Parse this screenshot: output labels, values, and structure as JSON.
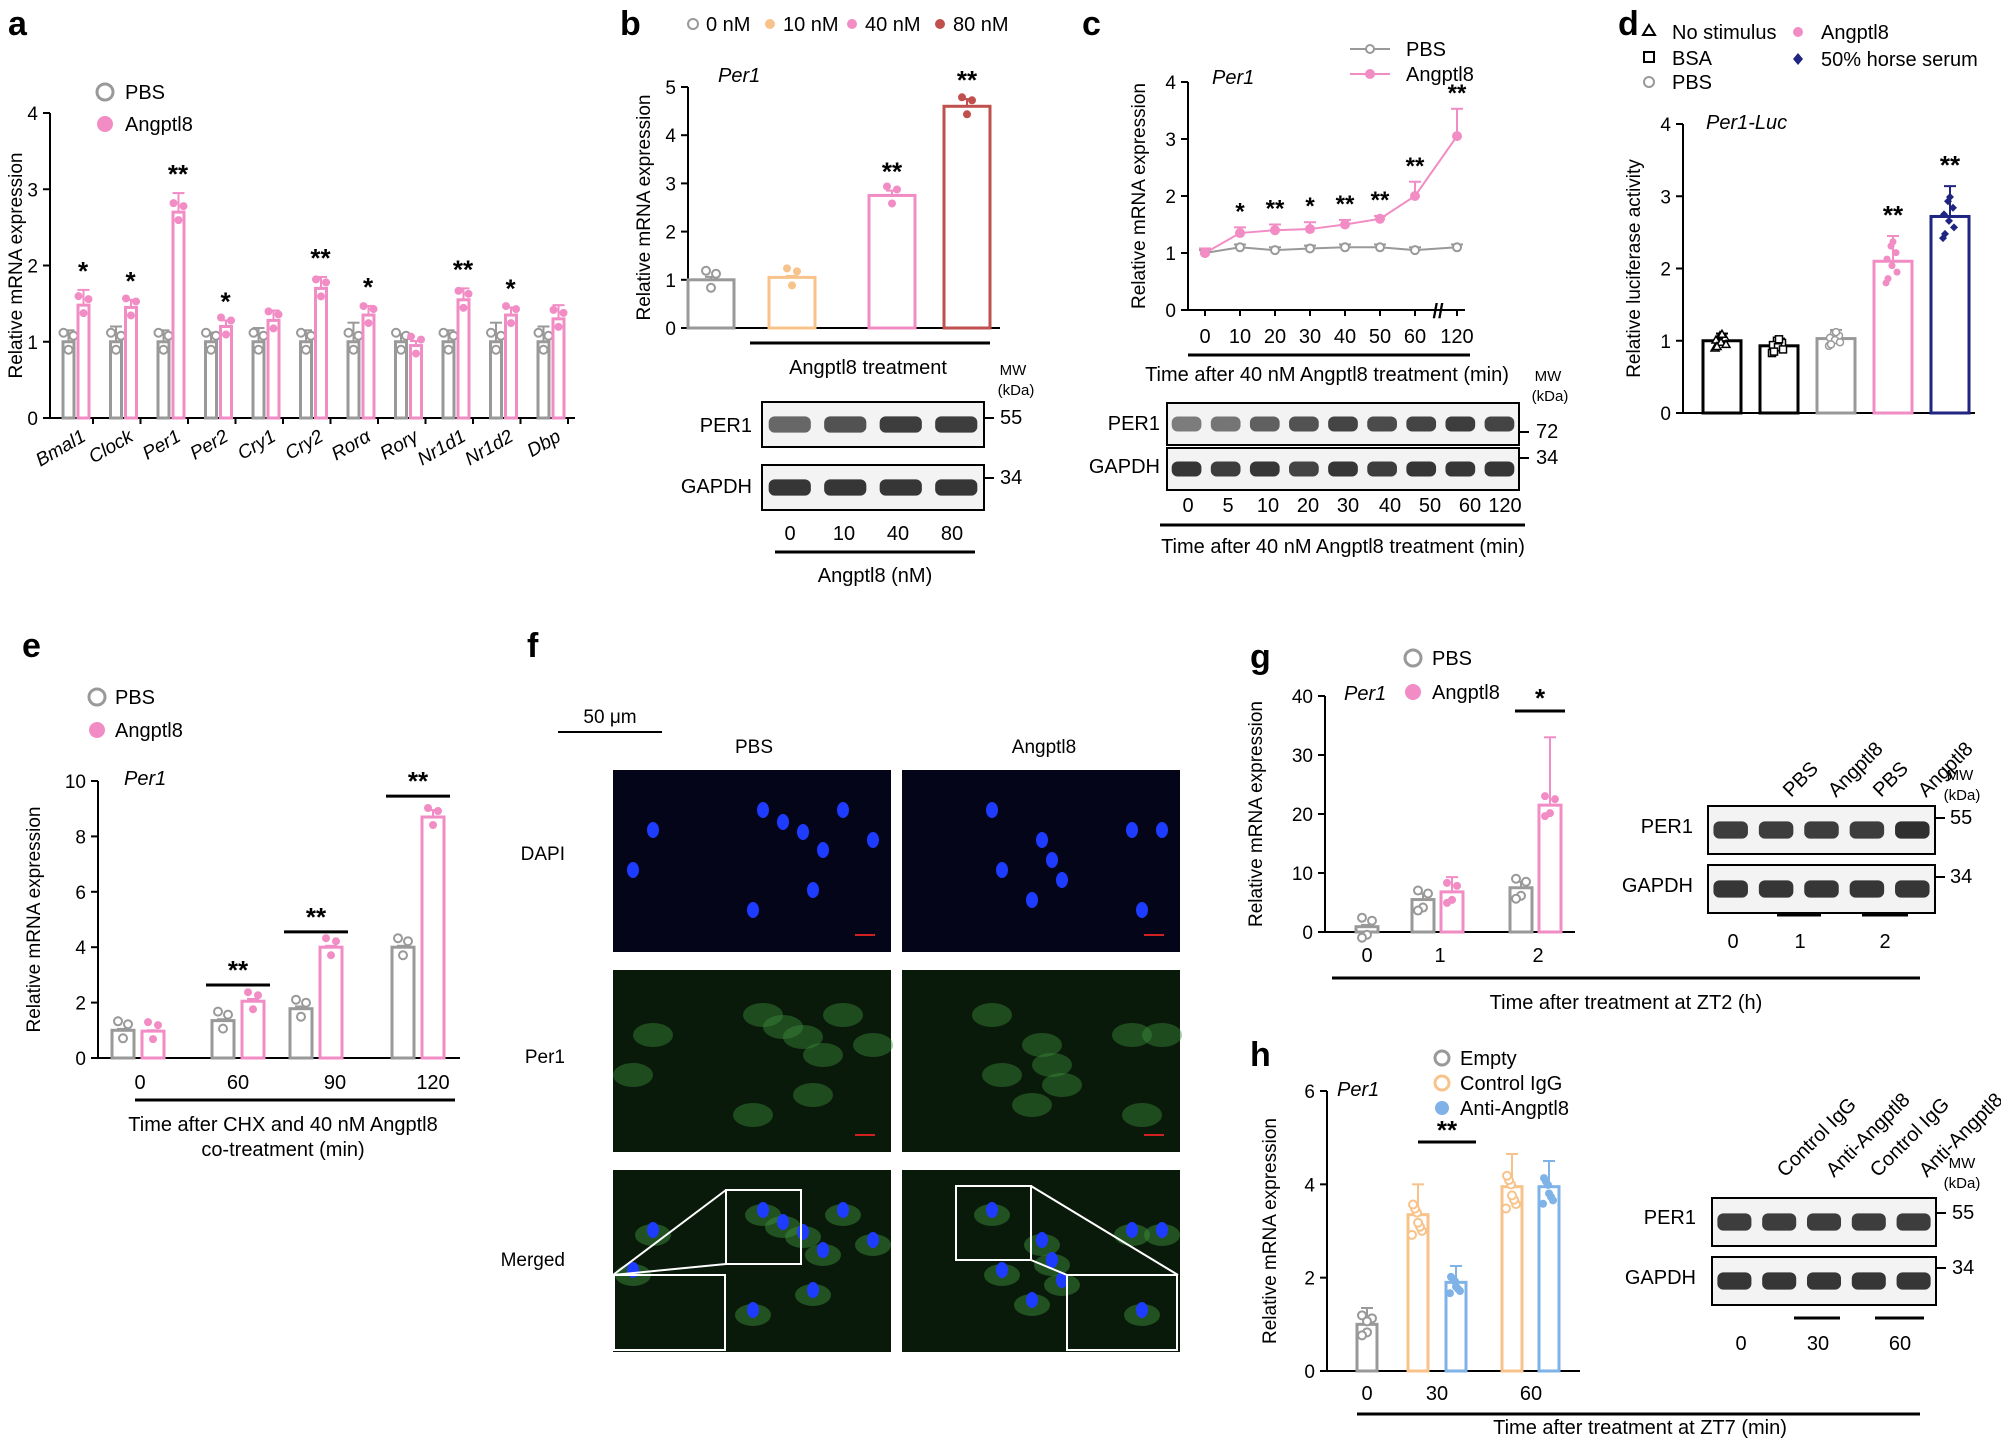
{
  "colors": {
    "pbs": "#999999",
    "angptl8": "#f28cc4",
    "c10": "#f8c38b",
    "c40": "#f28cc4",
    "c80": "#c0504d",
    "bsa": "#000000",
    "horse": "#1f2580",
    "igg": "#f8c38b",
    "anti": "#7fb3e8",
    "empty": "#999999",
    "dapi": "#1e3cff",
    "per1": "#3a8a3a"
  },
  "chart_data": [
    {
      "panel": "a",
      "type": "bar",
      "gene": "",
      "categories": [
        "Bmal1",
        "Clock",
        "Per1",
        "Per2",
        "Cry1",
        "Cry2",
        "Rorα",
        "Rorγ",
        "Nr1d1",
        "Nr1d2",
        "Dbp"
      ],
      "series": [
        {
          "name": "PBS",
          "values": [
            1,
            1,
            1,
            1,
            1,
            1,
            1,
            1,
            1,
            1,
            1
          ],
          "err": [
            0.15,
            0.2,
            0.15,
            0.12,
            0.18,
            0.15,
            0.25,
            0.1,
            0.15,
            0.25,
            0.2
          ]
        },
        {
          "name": "Angptl8",
          "values": [
            1.48,
            1.45,
            2.7,
            1.2,
            1.28,
            1.7,
            1.35,
            0.95,
            1.55,
            1.35,
            1.3
          ],
          "err": [
            0.2,
            0.1,
            0.25,
            0.08,
            0.13,
            0.15,
            0.12,
            0.06,
            0.15,
            0.1,
            0.18
          ]
        }
      ],
      "stars": [
        "*",
        "*",
        "**",
        "*",
        "",
        "**",
        "*",
        "",
        "**",
        "*",
        ""
      ],
      "ylabel": "Relative mRNA expression",
      "ylim": [
        0,
        4
      ],
      "yticks": [
        "0",
        "1",
        "2",
        "3",
        "4"
      ]
    },
    {
      "panel": "b",
      "type": "bar",
      "gene": "Per1",
      "categories": [
        "0 nM",
        "10 nM",
        "40 nM",
        "80 nM"
      ],
      "values": [
        1.0,
        1.05,
        2.75,
        4.6
      ],
      "err": [
        0.06,
        0.03,
        0.1,
        0.15
      ],
      "stars": [
        "",
        "",
        "**",
        "**"
      ],
      "ylabel": "Relative mRNA expression",
      "ylim": [
        0,
        5
      ],
      "yticks": [
        "0",
        "1",
        "2",
        "3",
        "4",
        "5"
      ],
      "xlabel": "Angptl8 treatment"
    },
    {
      "panel": "c",
      "type": "line",
      "gene": "Per1",
      "x": [
        "0",
        "10",
        "20",
        "30",
        "40",
        "50",
        "60",
        "120"
      ],
      "series": [
        {
          "name": "PBS",
          "values": [
            1.0,
            1.1,
            1.05,
            1.08,
            1.1,
            1.1,
            1.05,
            1.1
          ]
        },
        {
          "name": "Angptl8",
          "values": [
            1.0,
            1.35,
            1.4,
            1.42,
            1.5,
            1.6,
            2.0,
            3.05
          ]
        }
      ],
      "err": [
        0.08,
        0.1,
        0.1,
        0.12,
        0.08,
        0.05,
        0.25,
        0.48
      ],
      "stars": [
        "",
        "*",
        "**",
        "*",
        "**",
        "**",
        "**",
        "**"
      ],
      "ylabel": "Relative mRNA expression",
      "ylim": [
        0,
        4
      ],
      "yticks": [
        "0",
        "1",
        "2",
        "3",
        "4"
      ],
      "xlabel": "Time after 40 nM Angptl8 treatment (min)"
    },
    {
      "panel": "d",
      "type": "bar",
      "gene": "Per1-Luc",
      "categories": [
        "No stimulus",
        "BSA",
        "PBS",
        "Angptl8",
        "50% horse serum"
      ],
      "values": [
        1.0,
        0.93,
        1.03,
        2.1,
        2.72
      ],
      "err": [
        0.1,
        0.1,
        0.12,
        0.35,
        0.42
      ],
      "stars": [
        "",
        "",
        "",
        "**",
        "**"
      ],
      "ylabel": "Relative luciferase activity",
      "ylim": [
        0,
        4
      ],
      "yticks": [
        "0",
        "1",
        "2",
        "3",
        "4"
      ]
    },
    {
      "panel": "e",
      "type": "bar",
      "gene": "Per1",
      "categories": [
        "0",
        "60",
        "90",
        "120"
      ],
      "series": [
        {
          "name": "PBS",
          "values": [
            1.0,
            1.35,
            1.78,
            4.0
          ],
          "err": [
            0.05,
            0.05,
            0.08,
            0.05
          ]
        },
        {
          "name": "Angptl8",
          "values": [
            0.97,
            2.05,
            4.0,
            8.7
          ],
          "err": [
            0.03,
            0.08,
            0.05,
            0.25
          ]
        }
      ],
      "stars": [
        "",
        "**",
        "**",
        "**"
      ],
      "ylabel": "Relative mRNA expression",
      "ylim": [
        0,
        10
      ],
      "yticks": [
        "0",
        "2",
        "4",
        "6",
        "8",
        "10"
      ],
      "xlabel": "Time after CHX and 40 nM Angptl8 co-treatment (min)"
    },
    {
      "panel": "g",
      "type": "bar",
      "gene": "Per1",
      "categories": [
        "0",
        "1",
        "2"
      ],
      "series": [
        {
          "name": "PBS",
          "values": [
            0.9,
            5.5,
            7.5
          ],
          "err": [
            0.3,
            1.0,
            1.0
          ]
        },
        {
          "name": "Angptl8",
          "values": [
            null,
            6.8,
            21.5
          ],
          "err": [
            0,
            2.5,
            11.5
          ]
        }
      ],
      "stars": [
        "",
        "",
        "*"
      ],
      "ylabel": "Relative mRNA expression",
      "ylim": [
        0,
        40
      ],
      "yticks": [
        "0",
        "10",
        "20",
        "30",
        "40"
      ],
      "xlabel": "Time after treatment at ZT2 (h)"
    },
    {
      "panel": "h",
      "type": "bar",
      "gene": "Per1",
      "categories": [
        "0",
        "30",
        "60"
      ],
      "series": [
        {
          "name": "Empty",
          "values": [
            1.0,
            null,
            null
          ],
          "err": [
            0.35,
            0,
            0
          ]
        },
        {
          "name": "Control IgG",
          "values": [
            null,
            3.35,
            3.95
          ],
          "err": [
            0,
            0.65,
            0.7
          ]
        },
        {
          "name": "Anti-Angptl8",
          "values": [
            null,
            1.9,
            3.95
          ],
          "err": [
            0,
            0.35,
            0.55
          ]
        }
      ],
      "stars": [
        "",
        "**",
        ""
      ],
      "ylabel": "Relative mRNA expression",
      "ylim": [
        0,
        6
      ],
      "yticks": [
        "0",
        "2",
        "4",
        "6"
      ],
      "xlabel": "Time after treatment at ZT7 (min)"
    }
  ],
  "panels": {
    "a": {
      "letter": "a",
      "legend": [
        "PBS",
        "Angptl8"
      ]
    },
    "b": {
      "letter": "b",
      "legend": [
        "0 nM",
        "10 nM",
        "40 nM",
        "80 nM"
      ],
      "gene": "Per1",
      "xlabel": "Angptl8 treatment",
      "blot": {
        "mw_label": "MW",
        "kda": "(kDa)",
        "bands": [
          "PER1",
          "GAPDH"
        ],
        "mw": [
          "55",
          "34"
        ],
        "lanes": [
          "0",
          "10",
          "40",
          "80"
        ],
        "xlabel": "Angptl8 (nM)"
      }
    },
    "c": {
      "letter": "c",
      "legend": [
        "PBS",
        "Angptl8"
      ],
      "gene": "Per1",
      "xlabel": "Time after 40 nM Angptl8 treatment (min)",
      "break": "//",
      "blot": {
        "mw_label": "MW",
        "kda": "(kDa)",
        "bands": [
          "PER1",
          "GAPDH"
        ],
        "mw": [
          "72",
          "34"
        ],
        "lanes": [
          "0",
          "5",
          "10",
          "20",
          "30",
          "40",
          "50",
          "60",
          "120"
        ],
        "xlabel": "Time after 40 nM Angptl8 treatment (min)"
      }
    },
    "d": {
      "letter": "d",
      "legend": [
        "No stimulus",
        "BSA",
        "PBS",
        "Angptl8",
        "50% horse serum"
      ],
      "gene": "Per1-Luc"
    },
    "e": {
      "letter": "e",
      "legend": [
        "PBS",
        "Angptl8"
      ],
      "gene": "Per1",
      "xlabel1": "Time after CHX and 40 nM Angptl8 co-treatment",
      "xlabel2": "co-treatment (min)",
      "xlabel_line1": "Time after CHX and 40 nM Angptl8"
    },
    "f": {
      "letter": "f",
      "scale": "50 μm",
      "cols": [
        "PBS",
        "Angptl8"
      ],
      "rows": [
        "DAPI",
        "Per1",
        "Merged"
      ]
    },
    "g": {
      "letter": "g",
      "legend": [
        "PBS",
        "Angptl8"
      ],
      "gene": "Per1",
      "xlabel": "Time after treatment at ZT2 (h)",
      "blot": {
        "lanes": [
          "PBS",
          "Angptl8",
          "PBS",
          "Angptl8"
        ],
        "mw_label": "MW",
        "kda": "(kDa)",
        "bands": [
          "PER1",
          "GAPDH"
        ],
        "mw": [
          "55",
          "34"
        ],
        "times": [
          "0",
          "1",
          "2"
        ]
      }
    },
    "h": {
      "letter": "h",
      "legend": [
        "Empty",
        "Control IgG",
        "Anti-Angptl8"
      ],
      "gene": "Per1",
      "xlabel": "Time after treatment at ZT7 (min)",
      "blot": {
        "lanes": [
          "Control IgG",
          "Anti-Angptl8",
          "Control IgG",
          "Anti-Angptl8"
        ],
        "mw_label": "MW",
        "kda": "(kDa)",
        "bands": [
          "PER1",
          "GAPDH"
        ],
        "mw": [
          "55",
          "34"
        ],
        "times": [
          "0",
          "30",
          "60"
        ]
      }
    }
  }
}
